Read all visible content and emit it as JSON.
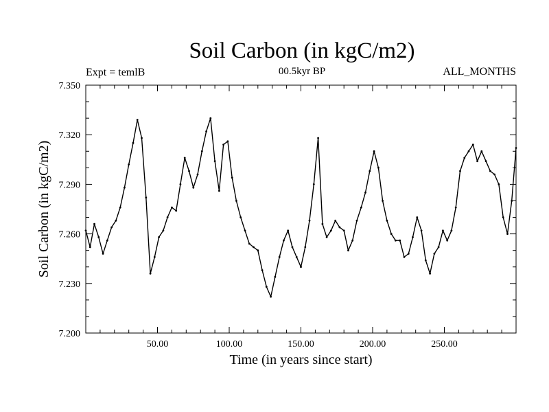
{
  "chart_data": {
    "type": "line",
    "title": "Soil Carbon (in kgC/m2)",
    "subtitle": "00.5kyr BP",
    "left_label": "Expt = temlB",
    "right_label": "ALL_MONTHS",
    "xlabel": "Time (in years since start)",
    "ylabel": "Soil Carbon (in kgC/m2)",
    "xlim": [
      0,
      300
    ],
    "ylim": [
      7.2,
      7.35
    ],
    "x_ticks": [
      50,
      100,
      150,
      200,
      250
    ],
    "x_tick_labels": [
      "50.00",
      "100.00",
      "150.00",
      "200.00",
      "250.00"
    ],
    "y_ticks": [
      7.2,
      7.23,
      7.26,
      7.29,
      7.32,
      7.35
    ],
    "y_tick_labels": [
      "7.200",
      "7.230",
      "7.260",
      "7.290",
      "7.320",
      "7.350"
    ],
    "series": [
      {
        "name": "Soil Carbon",
        "color": "#000000",
        "x": [
          0,
          3,
          6,
          9,
          12,
          15,
          18,
          21,
          24,
          27,
          30,
          33,
          36,
          39,
          42,
          45,
          48,
          51,
          54,
          57,
          60,
          63,
          66,
          69,
          72,
          75,
          78,
          81,
          84,
          87,
          90,
          93,
          96,
          99,
          102,
          105,
          108,
          111,
          114,
          117,
          120,
          123,
          126,
          129,
          132,
          135,
          138,
          141,
          144,
          147,
          150,
          153,
          156,
          159,
          162,
          165,
          168,
          171,
          174,
          177,
          180,
          183,
          186,
          189,
          192,
          195,
          198,
          201,
          204,
          207,
          210,
          213,
          216,
          219,
          222,
          225,
          228,
          231,
          234,
          237,
          240,
          243,
          246,
          249,
          252,
          255,
          258,
          261,
          264,
          267,
          270,
          273,
          276,
          279,
          282,
          285,
          288,
          291,
          294,
          297,
          300
        ],
        "values": [
          7.262,
          7.252,
          7.266,
          7.258,
          7.248,
          7.256,
          7.264,
          7.268,
          7.276,
          7.288,
          7.302,
          7.315,
          7.329,
          7.318,
          7.282,
          7.236,
          7.246,
          7.258,
          7.262,
          7.27,
          7.276,
          7.274,
          7.29,
          7.306,
          7.298,
          7.288,
          7.296,
          7.31,
          7.322,
          7.33,
          7.304,
          7.286,
          7.314,
          7.316,
          7.294,
          7.28,
          7.27,
          7.262,
          7.254,
          7.252,
          7.25,
          7.238,
          7.228,
          7.222,
          7.234,
          7.246,
          7.256,
          7.262,
          7.252,
          7.246,
          7.24,
          7.252,
          7.268,
          7.29,
          7.318,
          7.266,
          7.258,
          7.262,
          7.268,
          7.264,
          7.262,
          7.25,
          7.256,
          7.268,
          7.276,
          7.285,
          7.298,
          7.31,
          7.3,
          7.28,
          7.268,
          7.26,
          7.256,
          7.256,
          7.246,
          7.248,
          7.258,
          7.27,
          7.262,
          7.244,
          7.236,
          7.248,
          7.252,
          7.262,
          7.256,
          7.262,
          7.276,
          7.298,
          7.306,
          7.31,
          7.314,
          7.304,
          7.31,
          7.304,
          7.298,
          7.296,
          7.29,
          7.27,
          7.26,
          7.28,
          7.312
        ]
      }
    ]
  }
}
